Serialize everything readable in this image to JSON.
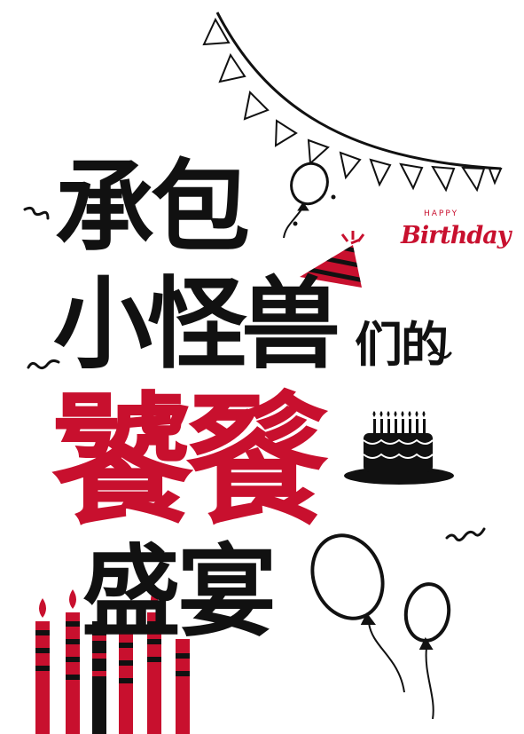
{
  "poster": {
    "line1": "承包",
    "line2_main": "小怪兽",
    "line2_suffix": "们的",
    "line3": "饕餮",
    "line4": "盛宴",
    "badge": {
      "small": "HAPPY",
      "script": "Birthday"
    }
  },
  "colors": {
    "accent_red": "#c8102e",
    "ink": "#111111",
    "background": "#ffffff"
  },
  "icons": [
    "bunting-flags-icon",
    "balloon-icon",
    "party-hat-icon",
    "birthday-cake-icon",
    "candles-icon",
    "confetti-squiggle-icon"
  ]
}
